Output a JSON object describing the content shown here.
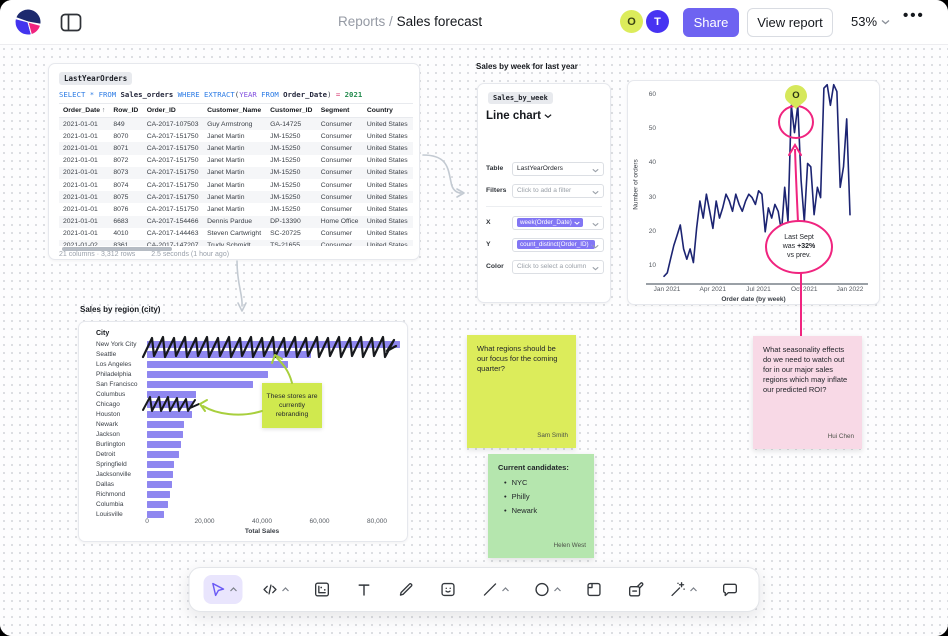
{
  "topbar": {
    "breadcrumb": {
      "section": "Reports",
      "separator": "/",
      "page": "Sales forecast"
    },
    "avatars": [
      {
        "initial": "O"
      },
      {
        "initial": "T"
      }
    ],
    "share_label": "Share",
    "view_report_label": "View report",
    "zoom_level": "53%",
    "more_label": "•••"
  },
  "colors": {
    "accent": "#6e63f1",
    "pink_annotation": "#f0247f",
    "line_series": "#1c2472",
    "bar_fill": "#8f87f0",
    "sticky_yellow": "#dcec5b",
    "sticky_pink": "#f8d9e6",
    "sticky_green": "#b5e6ae",
    "sticky_small": "#d0e94e",
    "avatar_o": "#dcec5b",
    "avatar_t": "#4733f2",
    "pin": "#d6e85b",
    "scribble": "#17191d",
    "green_arrow": "#a8cf3d"
  },
  "sql_cell": {
    "name": "LastYearOrders",
    "tokens": [
      [
        "SELECT ",
        "kw"
      ],
      [
        "* ",
        "kw"
      ],
      [
        "FROM ",
        "kw"
      ],
      [
        "Sales_orders ",
        "id"
      ],
      [
        "WHERE ",
        "kw"
      ],
      [
        "EXTRACT",
        "kw"
      ],
      [
        "(",
        "pu"
      ],
      [
        "YEAR",
        "ty"
      ],
      [
        " FROM ",
        "kw"
      ],
      [
        "Order_Date",
        "id"
      ],
      [
        ") ",
        "pu"
      ],
      [
        "= ",
        "op"
      ],
      [
        "2021",
        "num"
      ]
    ],
    "table": {
      "columns": [
        "Order_Date",
        "Row_ID",
        "Order_ID",
        "Customer_Name",
        "Customer_ID",
        "Segment",
        "Country"
      ],
      "sort_column": "Order_Date",
      "sort_indicator": "↑",
      "rows": [
        [
          "2021-01-01",
          "849",
          "CA-2017-107503",
          "Guy Armstrong",
          "GA-14725",
          "Consumer",
          "United States"
        ],
        [
          "2021-01-01",
          "8070",
          "CA-2017-151750",
          "Janet Martin",
          "JM-15250",
          "Consumer",
          "United States"
        ],
        [
          "2021-01-01",
          "8071",
          "CA-2017-151750",
          "Janet Martin",
          "JM-15250",
          "Consumer",
          "United States"
        ],
        [
          "2021-01-01",
          "8072",
          "CA-2017-151750",
          "Janet Martin",
          "JM-15250",
          "Consumer",
          "United States"
        ],
        [
          "2021-01-01",
          "8073",
          "CA-2017-151750",
          "Janet Martin",
          "JM-15250",
          "Consumer",
          "United States"
        ],
        [
          "2021-01-01",
          "8074",
          "CA-2017-151750",
          "Janet Martin",
          "JM-15250",
          "Consumer",
          "United States"
        ],
        [
          "2021-01-01",
          "8075",
          "CA-2017-151750",
          "Janet Martin",
          "JM-15250",
          "Consumer",
          "United States"
        ],
        [
          "2021-01-01",
          "8076",
          "CA-2017-151750",
          "Janet Martin",
          "JM-15250",
          "Consumer",
          "United States"
        ],
        [
          "2021-01-01",
          "6683",
          "CA-2017-154466",
          "Dennis Pardue",
          "DP-13390",
          "Home Office",
          "United States"
        ],
        [
          "2021-01-01",
          "4010",
          "CA-2017-144463",
          "Steven Cartwright",
          "SC-20725",
          "Consumer",
          "United States"
        ],
        [
          "2021-01-02",
          "8361",
          "CA-2017-147207",
          "Trudy Schmidt",
          "TS-21655",
          "Consumer",
          "United States"
        ]
      ]
    },
    "footer": {
      "summary": "21 columns · 3,312 rows",
      "timing": "2.5 seconds (1 hour ago)"
    }
  },
  "chart_config": {
    "title": "Sales by week for last year",
    "name": "Sales_by_week",
    "type_label": "Line chart",
    "rows": [
      {
        "label": "Table",
        "value": "LastYearOrders"
      },
      {
        "label": "Filters",
        "placeholder": "Click to add a filter"
      },
      {
        "label": "X",
        "pill": "week(Order_Date)"
      },
      {
        "label": "Y",
        "pill": "count_distinct(Order_ID)"
      },
      {
        "label": "Color",
        "placeholder": "Click to select a column"
      }
    ]
  },
  "chart_data": [
    {
      "type": "line",
      "title": "Sales by week for last year",
      "xlabel": "Order date (by week)",
      "ylabel": "Number of orders",
      "x_ticks": [
        "Jan 2021",
        "Apr 2021",
        "Jul 2021",
        "Oct 2021",
        "Jan 2022"
      ],
      "y_ticks": [
        10,
        20,
        30,
        40,
        50,
        60
      ],
      "ylim": [
        5,
        68
      ],
      "grid": false,
      "series": [
        {
          "name": "count_distinct(Order_ID)",
          "values": [
            7,
            8,
            12,
            16,
            19,
            22,
            15,
            12,
            15,
            11,
            21,
            29,
            24,
            31,
            26,
            21,
            29,
            24,
            27,
            31,
            29,
            26,
            31,
            28,
            26,
            29,
            31,
            30,
            28,
            32,
            31,
            20,
            27,
            24,
            28,
            26,
            20,
            33,
            23,
            57,
            49,
            57,
            35,
            23,
            40,
            39,
            25,
            33,
            30,
            62,
            63,
            57,
            63,
            61,
            33,
            39,
            53,
            25
          ]
        }
      ]
    },
    {
      "type": "bar",
      "orientation": "horizontal",
      "title": "Sales by region (city)",
      "column_header": "City",
      "xlabel": "Total Sales",
      "x_ticks": [
        "0",
        "20,000",
        "40,000",
        "60,000",
        "80,000"
      ],
      "xlim": [
        0,
        88000
      ],
      "categories": [
        "New York City",
        "Seattle",
        "Los Angeles",
        "Philadelphia",
        "San Francisco",
        "Columbus",
        "Chicago",
        "Houston",
        "Newark",
        "Jackson",
        "Burlington",
        "Detroit",
        "Springfield",
        "Jacksonville",
        "Dallas",
        "Richmond",
        "Columbia",
        "Louisville"
      ],
      "values": [
        88000,
        57000,
        49000,
        42000,
        37000,
        17000,
        16000,
        15500,
        13000,
        12600,
        11900,
        11200,
        9300,
        9100,
        8700,
        7900,
        7300,
        5900
      ]
    }
  ],
  "annotations": {
    "pin_label": "O",
    "callout": {
      "line1": "Last Sept",
      "line2_pre": "was ",
      "line2_bold": "+32%",
      "line3": "vs prev."
    },
    "rebrand_note": "These stores are currently rebranding"
  },
  "stickies": [
    {
      "text": "What regions should be our focus for the coming quarter?",
      "author": "Sam Smith"
    },
    {
      "text": "What seasonality effects do we need to watch out for in our major sales regions which may inflate our predicted ROI?",
      "author": "Hui Chen"
    },
    {
      "heading": "Current candidates:",
      "bullets": [
        "NYC",
        "Philly",
        "Newark"
      ],
      "author": "Helen West"
    }
  ],
  "toolbar": {
    "tools": [
      {
        "name": "select-tool",
        "active": true,
        "chevron": true
      },
      {
        "name": "code-tool",
        "chevron": true
      },
      {
        "name": "chart-tool"
      },
      {
        "name": "text-tool"
      },
      {
        "name": "draw-tool"
      },
      {
        "name": "sticky-note-tool"
      },
      {
        "name": "line-tool",
        "chevron": true
      },
      {
        "name": "shape-tool",
        "chevron": true
      },
      {
        "name": "frame-tool"
      },
      {
        "name": "stamp-tool"
      },
      {
        "name": "magic-wand-tool",
        "chevron": true
      },
      {
        "name": "comment-tool"
      }
    ]
  }
}
